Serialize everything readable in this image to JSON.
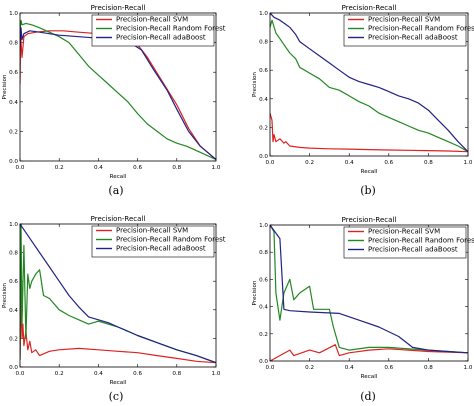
{
  "chart_data": [
    {
      "type": "line",
      "title": "Precision-Recall",
      "xlabel": "Recall",
      "ylabel": "Precision",
      "caption": "(a)",
      "xlim": [
        0,
        1
      ],
      "ylim": [
        0,
        1
      ],
      "xticks": [
        "0.0",
        "0.2",
        "0.4",
        "0.6",
        "0.8",
        "1.0"
      ],
      "yticks": [
        "0.0",
        "0.2",
        "0.4",
        "0.6",
        "0.8",
        "1.0"
      ],
      "legend": "top-right",
      "series": [
        {
          "name": "Precision-Recall SVM",
          "color": "#dd2222",
          "points": [
            [
              0,
              0.52
            ],
            [
              0.003,
              0.85
            ],
            [
              0.01,
              0.7
            ],
            [
              0.02,
              0.84
            ],
            [
              0.04,
              0.86
            ],
            [
              0.08,
              0.87
            ],
            [
              0.15,
              0.88
            ],
            [
              0.22,
              0.88
            ],
            [
              0.3,
              0.87
            ],
            [
              0.4,
              0.86
            ],
            [
              0.5,
              0.85
            ],
            [
              0.58,
              0.82
            ],
            [
              0.65,
              0.7
            ],
            [
              0.72,
              0.55
            ],
            [
              0.8,
              0.38
            ],
            [
              0.86,
              0.22
            ],
            [
              0.92,
              0.1
            ],
            [
              1.0,
              0.01
            ]
          ]
        },
        {
          "name": "Precision-Recall Random Forest",
          "color": "#228822",
          "points": [
            [
              0,
              0.88
            ],
            [
              0.005,
              0.95
            ],
            [
              0.01,
              0.92
            ],
            [
              0.03,
              0.93
            ],
            [
              0.06,
              0.92
            ],
            [
              0.1,
              0.9
            ],
            [
              0.15,
              0.87
            ],
            [
              0.2,
              0.84
            ],
            [
              0.25,
              0.8
            ],
            [
              0.3,
              0.72
            ],
            [
              0.35,
              0.64
            ],
            [
              0.4,
              0.58
            ],
            [
              0.45,
              0.52
            ],
            [
              0.5,
              0.46
            ],
            [
              0.55,
              0.4
            ],
            [
              0.6,
              0.32
            ],
            [
              0.65,
              0.25
            ],
            [
              0.7,
              0.2
            ],
            [
              0.75,
              0.15
            ],
            [
              0.8,
              0.12
            ],
            [
              0.85,
              0.1
            ],
            [
              0.9,
              0.07
            ],
            [
              0.95,
              0.04
            ],
            [
              1.0,
              0.01
            ]
          ]
        },
        {
          "name": "Precision-Recall adaBoost",
          "color": "#222288",
          "points": [
            [
              0,
              0.76
            ],
            [
              0.005,
              0.9
            ],
            [
              0.01,
              0.82
            ],
            [
              0.02,
              0.86
            ],
            [
              0.05,
              0.88
            ],
            [
              0.1,
              0.87
            ],
            [
              0.15,
              0.86
            ],
            [
              0.2,
              0.85
            ],
            [
              0.3,
              0.84
            ],
            [
              0.4,
              0.83
            ],
            [
              0.5,
              0.82
            ],
            [
              0.55,
              0.81
            ],
            [
              0.62,
              0.75
            ],
            [
              0.68,
              0.62
            ],
            [
              0.75,
              0.48
            ],
            [
              0.8,
              0.35
            ],
            [
              0.86,
              0.2
            ],
            [
              0.92,
              0.1
            ],
            [
              1.0,
              0.01
            ]
          ]
        }
      ]
    },
    {
      "type": "line",
      "title": "Precision-Recall",
      "xlabel": "Recall",
      "ylabel": "Precision",
      "caption": "(b)",
      "xlim": [
        0,
        1
      ],
      "ylim": [
        0,
        1
      ],
      "xticks": [
        "0.0",
        "0.2",
        "0.4",
        "0.6",
        "0.8",
        "1.0"
      ],
      "yticks": [
        "0.0",
        "0.2",
        "0.4",
        "0.6",
        "0.8",
        "1.0"
      ],
      "legend": "top-right",
      "series": [
        {
          "name": "Precision-Recall SVM",
          "color": "#dd2222",
          "points": [
            [
              0,
              0.3
            ],
            [
              0.01,
              0.25
            ],
            [
              0.015,
              0.1
            ],
            [
              0.02,
              0.15
            ],
            [
              0.03,
              0.1
            ],
            [
              0.05,
              0.12
            ],
            [
              0.07,
              0.09
            ],
            [
              0.08,
              0.1
            ],
            [
              0.1,
              0.07
            ],
            [
              0.15,
              0.06
            ],
            [
              0.2,
              0.055
            ],
            [
              0.3,
              0.05
            ],
            [
              0.4,
              0.048
            ],
            [
              0.5,
              0.045
            ],
            [
              0.6,
              0.042
            ],
            [
              0.7,
              0.04
            ],
            [
              0.8,
              0.038
            ],
            [
              0.9,
              0.035
            ],
            [
              1.0,
              0.03
            ]
          ]
        },
        {
          "name": "Precision-Recall Random Forest",
          "color": "#228822",
          "points": [
            [
              0,
              0.9
            ],
            [
              0.01,
              0.95
            ],
            [
              0.03,
              0.86
            ],
            [
              0.05,
              0.82
            ],
            [
              0.08,
              0.76
            ],
            [
              0.1,
              0.72
            ],
            [
              0.13,
              0.68
            ],
            [
              0.15,
              0.62
            ],
            [
              0.2,
              0.58
            ],
            [
              0.25,
              0.54
            ],
            [
              0.3,
              0.48
            ],
            [
              0.35,
              0.46
            ],
            [
              0.4,
              0.42
            ],
            [
              0.45,
              0.38
            ],
            [
              0.5,
              0.35
            ],
            [
              0.55,
              0.3
            ],
            [
              0.6,
              0.27
            ],
            [
              0.65,
              0.24
            ],
            [
              0.7,
              0.21
            ],
            [
              0.75,
              0.18
            ],
            [
              0.8,
              0.16
            ],
            [
              0.85,
              0.13
            ],
            [
              0.9,
              0.1
            ],
            [
              0.95,
              0.07
            ],
            [
              1.0,
              0.03
            ]
          ]
        },
        {
          "name": "Precision-Recall adaBoost",
          "color": "#222288",
          "points": [
            [
              0,
              1.0
            ],
            [
              0.02,
              0.97
            ],
            [
              0.05,
              0.95
            ],
            [
              0.08,
              0.92
            ],
            [
              0.1,
              0.9
            ],
            [
              0.13,
              0.85
            ],
            [
              0.15,
              0.8
            ],
            [
              0.2,
              0.75
            ],
            [
              0.25,
              0.7
            ],
            [
              0.3,
              0.65
            ],
            [
              0.35,
              0.6
            ],
            [
              0.4,
              0.55
            ],
            [
              0.45,
              0.52
            ],
            [
              0.5,
              0.5
            ],
            [
              0.55,
              0.48
            ],
            [
              0.6,
              0.45
            ],
            [
              0.65,
              0.42
            ],
            [
              0.7,
              0.4
            ],
            [
              0.75,
              0.37
            ],
            [
              0.8,
              0.32
            ],
            [
              0.85,
              0.25
            ],
            [
              0.9,
              0.18
            ],
            [
              0.95,
              0.1
            ],
            [
              1.0,
              0.03
            ]
          ]
        }
      ]
    },
    {
      "type": "line",
      "title": "Precision-Recall",
      "xlabel": "Recall",
      "ylabel": "Precision",
      "caption": "(c)",
      "xlim": [
        0,
        1
      ],
      "ylim": [
        0,
        1
      ],
      "xticks": [
        "0.0",
        "0.2",
        "0.4",
        "0.6",
        "0.8",
        "1.0"
      ],
      "yticks": [
        "0.0",
        "0.2",
        "0.4",
        "0.6",
        "0.8",
        "1.0"
      ],
      "legend": "top-right",
      "series": [
        {
          "name": "Precision-Recall SVM",
          "color": "#dd2222",
          "points": [
            [
              0,
              0.05
            ],
            [
              0.005,
              0.5
            ],
            [
              0.01,
              0.2
            ],
            [
              0.015,
              0.3
            ],
            [
              0.02,
              0.15
            ],
            [
              0.03,
              0.25
            ],
            [
              0.04,
              0.12
            ],
            [
              0.05,
              0.18
            ],
            [
              0.06,
              0.1
            ],
            [
              0.08,
              0.12
            ],
            [
              0.1,
              0.08
            ],
            [
              0.15,
              0.11
            ],
            [
              0.2,
              0.12
            ],
            [
              0.3,
              0.13
            ],
            [
              0.4,
              0.12
            ],
            [
              0.5,
              0.11
            ],
            [
              0.6,
              0.1
            ],
            [
              0.7,
              0.08
            ],
            [
              0.8,
              0.06
            ],
            [
              0.9,
              0.04
            ],
            [
              1.0,
              0.03
            ]
          ]
        },
        {
          "name": "Precision-Recall Random Forest",
          "color": "#228822",
          "points": [
            [
              0,
              0.05
            ],
            [
              0.005,
              1.0
            ],
            [
              0.01,
              0.3
            ],
            [
              0.02,
              0.85
            ],
            [
              0.03,
              0.2
            ],
            [
              0.04,
              0.65
            ],
            [
              0.05,
              0.55
            ],
            [
              0.06,
              0.6
            ],
            [
              0.08,
              0.65
            ],
            [
              0.1,
              0.68
            ],
            [
              0.12,
              0.5
            ],
            [
              0.15,
              0.48
            ],
            [
              0.2,
              0.4
            ],
            [
              0.25,
              0.36
            ],
            [
              0.3,
              0.33
            ],
            [
              0.35,
              0.3
            ],
            [
              0.4,
              0.32
            ],
            [
              0.5,
              0.28
            ],
            [
              0.6,
              0.22
            ],
            [
              0.7,
              0.17
            ],
            [
              0.8,
              0.12
            ],
            [
              0.9,
              0.08
            ],
            [
              1.0,
              0.03
            ]
          ]
        },
        {
          "name": "Precision-Recall adaBoost",
          "color": "#222288",
          "points": [
            [
              0,
              1.0
            ],
            [
              0.05,
              0.9
            ],
            [
              0.1,
              0.8
            ],
            [
              0.15,
              0.7
            ],
            [
              0.2,
              0.6
            ],
            [
              0.25,
              0.5
            ],
            [
              0.3,
              0.42
            ],
            [
              0.35,
              0.35
            ],
            [
              0.4,
              0.33
            ],
            [
              0.45,
              0.31
            ],
            [
              0.5,
              0.28
            ],
            [
              0.6,
              0.22
            ],
            [
              0.7,
              0.17
            ],
            [
              0.8,
              0.12
            ],
            [
              0.9,
              0.08
            ],
            [
              1.0,
              0.03
            ]
          ]
        }
      ]
    },
    {
      "type": "line",
      "title": "Precision-Recall",
      "xlabel": "Recall",
      "ylabel": "Precision",
      "caption": "(d)",
      "xlim": [
        0,
        1
      ],
      "ylim": [
        0,
        1
      ],
      "xticks": [
        "0.0",
        "0.2",
        "0.4",
        "0.6",
        "0.8",
        "1.0"
      ],
      "yticks": [
        "0.0",
        "0.2",
        "0.4",
        "0.6",
        "0.8",
        "1.0"
      ],
      "legend": "top-right",
      "series": [
        {
          "name": "Precision-Recall SVM",
          "color": "#dd2222",
          "points": [
            [
              0,
              0.0
            ],
            [
              0.05,
              0.04
            ],
            [
              0.1,
              0.08
            ],
            [
              0.12,
              0.04
            ],
            [
              0.2,
              0.08
            ],
            [
              0.25,
              0.06
            ],
            [
              0.33,
              0.12
            ],
            [
              0.35,
              0.04
            ],
            [
              0.4,
              0.06
            ],
            [
              0.5,
              0.08
            ],
            [
              0.6,
              0.09
            ],
            [
              0.7,
              0.08
            ],
            [
              0.8,
              0.07
            ],
            [
              0.9,
              0.065
            ],
            [
              1.0,
              0.06
            ]
          ]
        },
        {
          "name": "Precision-Recall Random Forest",
          "color": "#228822",
          "points": [
            [
              0,
              1.0
            ],
            [
              0.02,
              0.95
            ],
            [
              0.03,
              0.5
            ],
            [
              0.05,
              0.3
            ],
            [
              0.07,
              0.5
            ],
            [
              0.1,
              0.6
            ],
            [
              0.12,
              0.45
            ],
            [
              0.15,
              0.5
            ],
            [
              0.2,
              0.55
            ],
            [
              0.22,
              0.38
            ],
            [
              0.3,
              0.38
            ],
            [
              0.32,
              0.25
            ],
            [
              0.35,
              0.1
            ],
            [
              0.4,
              0.08
            ],
            [
              0.5,
              0.1
            ],
            [
              0.6,
              0.1
            ],
            [
              0.7,
              0.09
            ],
            [
              0.8,
              0.08
            ],
            [
              0.9,
              0.07
            ],
            [
              1.0,
              0.06
            ]
          ]
        },
        {
          "name": "Precision-Recall adaBoost",
          "color": "#222288",
          "points": [
            [
              0,
              1.0
            ],
            [
              0.05,
              0.9
            ],
            [
              0.07,
              0.38
            ],
            [
              0.1,
              0.37
            ],
            [
              0.2,
              0.36
            ],
            [
              0.35,
              0.35
            ],
            [
              0.45,
              0.3
            ],
            [
              0.55,
              0.25
            ],
            [
              0.65,
              0.18
            ],
            [
              0.72,
              0.1
            ],
            [
              0.8,
              0.08
            ],
            [
              0.9,
              0.07
            ],
            [
              1.0,
              0.06
            ]
          ]
        }
      ]
    }
  ]
}
